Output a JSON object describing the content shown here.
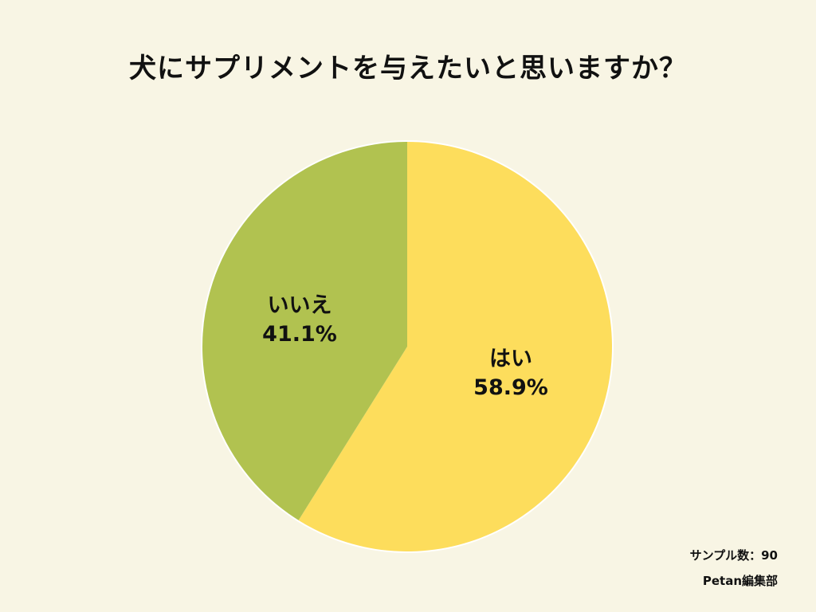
{
  "chart_data": {
    "type": "pie",
    "title": "犬にサプリメントを与えたいと思いますか？",
    "slices": [
      {
        "label": "はい",
        "value": 58.9,
        "display": "58.9%",
        "color": "#fddd5c"
      },
      {
        "label": "いいえ",
        "value": 41.1,
        "display": "41.1%",
        "color": "#b1c250"
      }
    ],
    "start_angle": "12 o'clock",
    "direction": "clockwise",
    "border_color": "#ffffff",
    "background": "#f8f5e4"
  },
  "header": {
    "title": "犬にサプリメントを与えたいと思いますか？"
  },
  "labels": {
    "yes": {
      "name": "はい",
      "pct": "58.9%"
    },
    "no": {
      "name": "いいえ",
      "pct": "41.1%"
    }
  },
  "footer": {
    "sample": "サンプル数：90",
    "source": "Petan編集部"
  }
}
